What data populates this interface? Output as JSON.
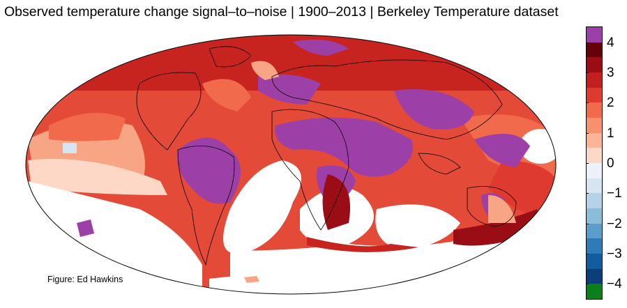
{
  "title": "Observed temperature change signal–to–noise | 1900–2013 | Berkeley Temperature dataset",
  "credit": "Figure: Ed Hawkins",
  "colorbar": {
    "ticks": [
      "4",
      "3",
      "2",
      "1",
      "0",
      "−1",
      "−2",
      "−3",
      "−4"
    ],
    "segments": [
      "#9c3fa6",
      "#660008",
      "#9a0d15",
      "#c31e20",
      "#df3a2f",
      "#f06a4b",
      "#f8906f",
      "#fbb498",
      "#fdd8c6",
      "#eef2f8",
      "#d7e5f2",
      "#b5d3e8",
      "#8bbdda",
      "#5b9dcb",
      "#2f7bb8",
      "#125da0",
      "#0a3f7a",
      "#0b7f19"
    ],
    "range": [
      -4,
      4
    ]
  },
  "colors": {
    "land_outline": "#000000",
    "map_background": "#ffffff",
    "ocean_missing": "#ffffff"
  }
}
